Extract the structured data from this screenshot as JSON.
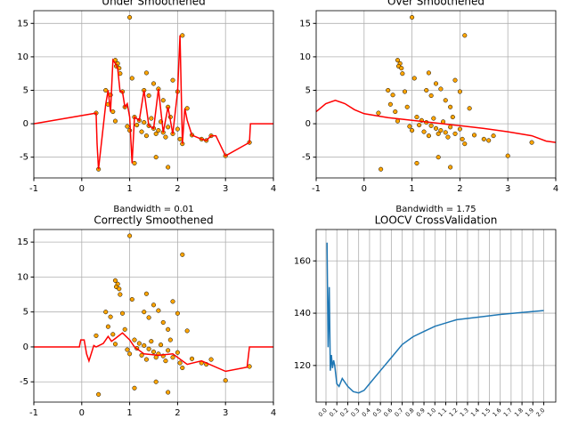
{
  "chart_data": [
    {
      "type": "scatter",
      "title": "Under Smoothened",
      "xlabel": "Bandwidth = 0.01",
      "x": [
        1.0,
        2.1,
        0.7,
        0.75,
        0.72,
        0.78,
        0.8,
        1.35,
        1.05,
        1.5,
        1.9,
        0.5,
        0.6,
        0.85,
        1.3,
        1.6,
        2.0,
        1.4,
        0.55,
        0.65,
        0.9,
        1.7,
        1.8,
        2.2,
        0.3,
        0.7,
        1.1,
        1.2,
        1.3,
        1.4,
        1.5,
        1.6,
        1.7,
        1.8,
        1.9,
        2.0,
        2.3,
        2.5,
        2.7,
        2.6,
        1.25,
        1.35,
        1.55,
        1.45,
        1.65,
        1.15,
        0.35,
        1.1,
        1.55,
        1.8,
        3.0,
        3.5,
        2.1,
        0.95,
        1.0,
        1.75,
        1.85,
        2.05
      ],
      "y": [
        15.9,
        13.2,
        9.5,
        9.0,
        8.6,
        8.3,
        7.5,
        7.6,
        6.8,
        6.0,
        6.5,
        5.0,
        4.3,
        4.8,
        5.0,
        5.2,
        4.8,
        4.2,
        2.9,
        1.8,
        2.5,
        3.5,
        2.5,
        2.3,
        1.6,
        0.4,
        1.0,
        0.5,
        0.2,
        -0.3,
        -0.7,
        -1.0,
        -1.3,
        -0.5,
        -1.5,
        -0.8,
        -1.7,
        -2.3,
        -1.8,
        -2.5,
        -1.2,
        -1.8,
        -1.5,
        0.8,
        0.3,
        -0.2,
        -6.8,
        -5.9,
        -5.0,
        -6.5,
        -4.8,
        -2.8,
        -3.0,
        -0.4,
        -1.0,
        -2.0,
        1.0,
        -2.3
      ],
      "point_color": "#ffa500",
      "curve": {
        "color": "#ff0000",
        "x": [
          -1,
          0.3,
          0.32,
          0.35,
          0.5,
          0.55,
          0.6,
          0.65,
          0.7,
          0.75,
          0.8,
          0.85,
          0.9,
          0.95,
          1.0,
          1.05,
          1.1,
          1.2,
          1.3,
          1.4,
          1.5,
          1.6,
          1.7,
          1.8,
          1.9,
          2.0,
          2.05,
          2.1,
          2.15,
          2.2,
          2.3,
          2.5,
          2.6,
          2.7,
          2.8,
          3.0,
          3.5,
          3.52,
          4
        ],
        "y": [
          0,
          1.6,
          -3,
          -6.8,
          2.9,
          5,
          1.8,
          9.5,
          9,
          8.3,
          4.8,
          4.8,
          2.5,
          3,
          1,
          -5.9,
          1,
          0.5,
          5,
          -0.3,
          -0.7,
          5.2,
          -1.3,
          2.5,
          -1.5,
          4.8,
          13.2,
          -3,
          2.3,
          0.5,
          -1.7,
          -2.3,
          -2.5,
          -1.8,
          -1.8,
          -4.8,
          -2.8,
          0,
          0
        ]
      },
      "xlim": [
        -1,
        4
      ],
      "ylim": [
        -8.1,
        16.9
      ],
      "xticks": [
        -1,
        0,
        1,
        2,
        3,
        4
      ],
      "yticks": [
        -5,
        0,
        5,
        10,
        15
      ],
      "grid": true
    },
    {
      "type": "scatter",
      "title": "Over Smoothened",
      "xlabel": "Bandwidth = 1.75",
      "x": [
        1.0,
        2.1,
        0.7,
        0.75,
        0.72,
        0.78,
        0.8,
        1.35,
        1.05,
        1.5,
        1.9,
        0.5,
        0.6,
        0.85,
        1.3,
        1.6,
        2.0,
        1.4,
        0.55,
        0.65,
        0.9,
        1.7,
        1.8,
        2.2,
        0.3,
        0.7,
        1.1,
        1.2,
        1.3,
        1.4,
        1.5,
        1.6,
        1.7,
        1.8,
        1.9,
        2.0,
        2.3,
        2.5,
        2.7,
        2.6,
        1.25,
        1.35,
        1.55,
        1.45,
        1.65,
        1.15,
        0.35,
        1.1,
        1.55,
        1.8,
        3.0,
        3.5,
        2.1,
        0.95,
        1.0,
        1.75,
        1.85,
        2.05
      ],
      "y": [
        15.9,
        13.2,
        9.5,
        9.0,
        8.6,
        8.3,
        7.5,
        7.6,
        6.8,
        6.0,
        6.5,
        5.0,
        4.3,
        4.8,
        5.0,
        5.2,
        4.8,
        4.2,
        2.9,
        1.8,
        2.5,
        3.5,
        2.5,
        2.3,
        1.6,
        0.4,
        1.0,
        0.5,
        0.2,
        -0.3,
        -0.7,
        -1.0,
        -1.3,
        -0.5,
        -1.5,
        -0.8,
        -1.7,
        -2.3,
        -1.8,
        -2.5,
        -1.2,
        -1.8,
        -1.5,
        0.8,
        0.3,
        -0.2,
        -6.8,
        -5.9,
        -5.0,
        -6.5,
        -4.8,
        -2.8,
        -3.0,
        -0.4,
        -1.0,
        -2.0,
        1.0,
        -2.3
      ],
      "point_color": "#ffa500",
      "curve": {
        "color": "#ff0000",
        "x": [
          -1,
          -0.8,
          -0.6,
          -0.4,
          -0.2,
          0,
          0.5,
          1,
          1.5,
          2,
          2.5,
          3,
          3.5,
          3.8,
          4
        ],
        "y": [
          1.8,
          3.0,
          3.5,
          3.0,
          2.1,
          1.5,
          0.9,
          0.5,
          0.1,
          -0.3,
          -0.7,
          -1.2,
          -1.8,
          -2.6,
          -2.8
        ]
      },
      "xlim": [
        -1,
        4
      ],
      "ylim": [
        -8.1,
        16.9
      ],
      "xticks": [
        -1,
        0,
        1,
        2,
        3,
        4
      ],
      "yticks": [
        -5,
        0,
        5,
        10,
        15
      ],
      "grid": true
    },
    {
      "type": "scatter",
      "title": "Correctly Smoothened",
      "x": [
        1.0,
        2.1,
        0.7,
        0.75,
        0.72,
        0.78,
        0.8,
        1.35,
        1.05,
        1.5,
        1.9,
        0.5,
        0.6,
        0.85,
        1.3,
        1.6,
        2.0,
        1.4,
        0.55,
        0.65,
        0.9,
        1.7,
        1.8,
        2.2,
        0.3,
        0.7,
        1.1,
        1.2,
        1.3,
        1.4,
        1.5,
        1.6,
        1.7,
        1.8,
        1.9,
        2.0,
        2.3,
        2.5,
        2.7,
        2.6,
        1.25,
        1.35,
        1.55,
        1.45,
        1.65,
        1.15,
        0.35,
        1.1,
        1.55,
        1.8,
        3.0,
        3.5,
        2.1,
        0.95,
        1.0,
        1.75,
        1.85,
        2.05
      ],
      "y": [
        15.9,
        13.2,
        9.5,
        9.0,
        8.6,
        8.3,
        7.5,
        7.6,
        6.8,
        6.0,
        6.5,
        5.0,
        4.3,
        4.8,
        5.0,
        5.2,
        4.8,
        4.2,
        2.9,
        1.8,
        2.5,
        3.5,
        2.5,
        2.3,
        1.6,
        0.4,
        1.0,
        0.5,
        0.2,
        -0.3,
        -0.7,
        -1.0,
        -1.3,
        -0.5,
        -1.5,
        -0.8,
        -1.7,
        -2.3,
        -1.8,
        -2.5,
        -1.2,
        -1.8,
        -1.5,
        0.8,
        0.3,
        -0.2,
        -6.8,
        -5.9,
        -5.0,
        -6.5,
        -4.8,
        -2.8,
        -3.0,
        -0.4,
        -1.0,
        -2.0,
        1.0,
        -2.3
      ],
      "point_color": "#ffa500",
      "curve": {
        "color": "#ff0000",
        "x": [
          -1,
          -0.05,
          -0.02,
          0.05,
          0.1,
          0.15,
          0.25,
          0.3,
          0.45,
          0.55,
          0.62,
          0.7,
          0.85,
          1.0,
          1.1,
          1.3,
          1.6,
          1.9,
          2.2,
          2.5,
          3.0,
          3.45,
          3.5,
          4
        ],
        "y": [
          0,
          0,
          1,
          1,
          -1,
          -2,
          0.2,
          0,
          0.5,
          1.5,
          0.8,
          1.2,
          2,
          1,
          0,
          -1,
          -1.2,
          -1,
          -2.5,
          -2,
          -3.5,
          -2.9,
          0,
          0
        ]
      },
      "xlim": [
        -1,
        4
      ],
      "ylim": [
        -7.9,
        16.8
      ],
      "xticks": [
        -1,
        0,
        1,
        2,
        3,
        4
      ],
      "yticks": [
        -5,
        0,
        5,
        10,
        15
      ],
      "grid": true
    },
    {
      "type": "line",
      "title": "LOOCV CrossValidation",
      "x": [
        0.01,
        0.02,
        0.03,
        0.04,
        0.05,
        0.06,
        0.07,
        0.08,
        0.1,
        0.12,
        0.15,
        0.2,
        0.25,
        0.3,
        0.35,
        0.4,
        0.5,
        0.6,
        0.7,
        0.8,
        0.9,
        1.0,
        1.2,
        1.4,
        1.6,
        1.8,
        2.0
      ],
      "y": [
        167,
        127,
        150,
        118,
        124,
        119,
        122,
        120,
        113,
        112,
        115,
        112,
        110,
        109.5,
        110.5,
        113,
        118,
        123,
        128,
        131,
        133,
        135,
        137.5,
        138.5,
        139.5,
        140.3,
        141
      ],
      "color": "#1f77b4",
      "xlim": [
        -0.09,
        2.11
      ],
      "ylim": [
        106,
        172
      ],
      "xticks": [
        {
          "value": 0,
          "label": "0.0"
        },
        0.1,
        0.2,
        0.3,
        0.4,
        0.5,
        0.6,
        0.7,
        0.8,
        0.9,
        {
          "value": 1,
          "label": "1.0"
        },
        1.1,
        1.2,
        1.3,
        1.4,
        1.5,
        1.6,
        1.7,
        1.8,
        1.9,
        {
          "value": 2,
          "label": "2.0"
        }
      ],
      "yticks": [
        120,
        140,
        160
      ],
      "grid": true
    }
  ]
}
